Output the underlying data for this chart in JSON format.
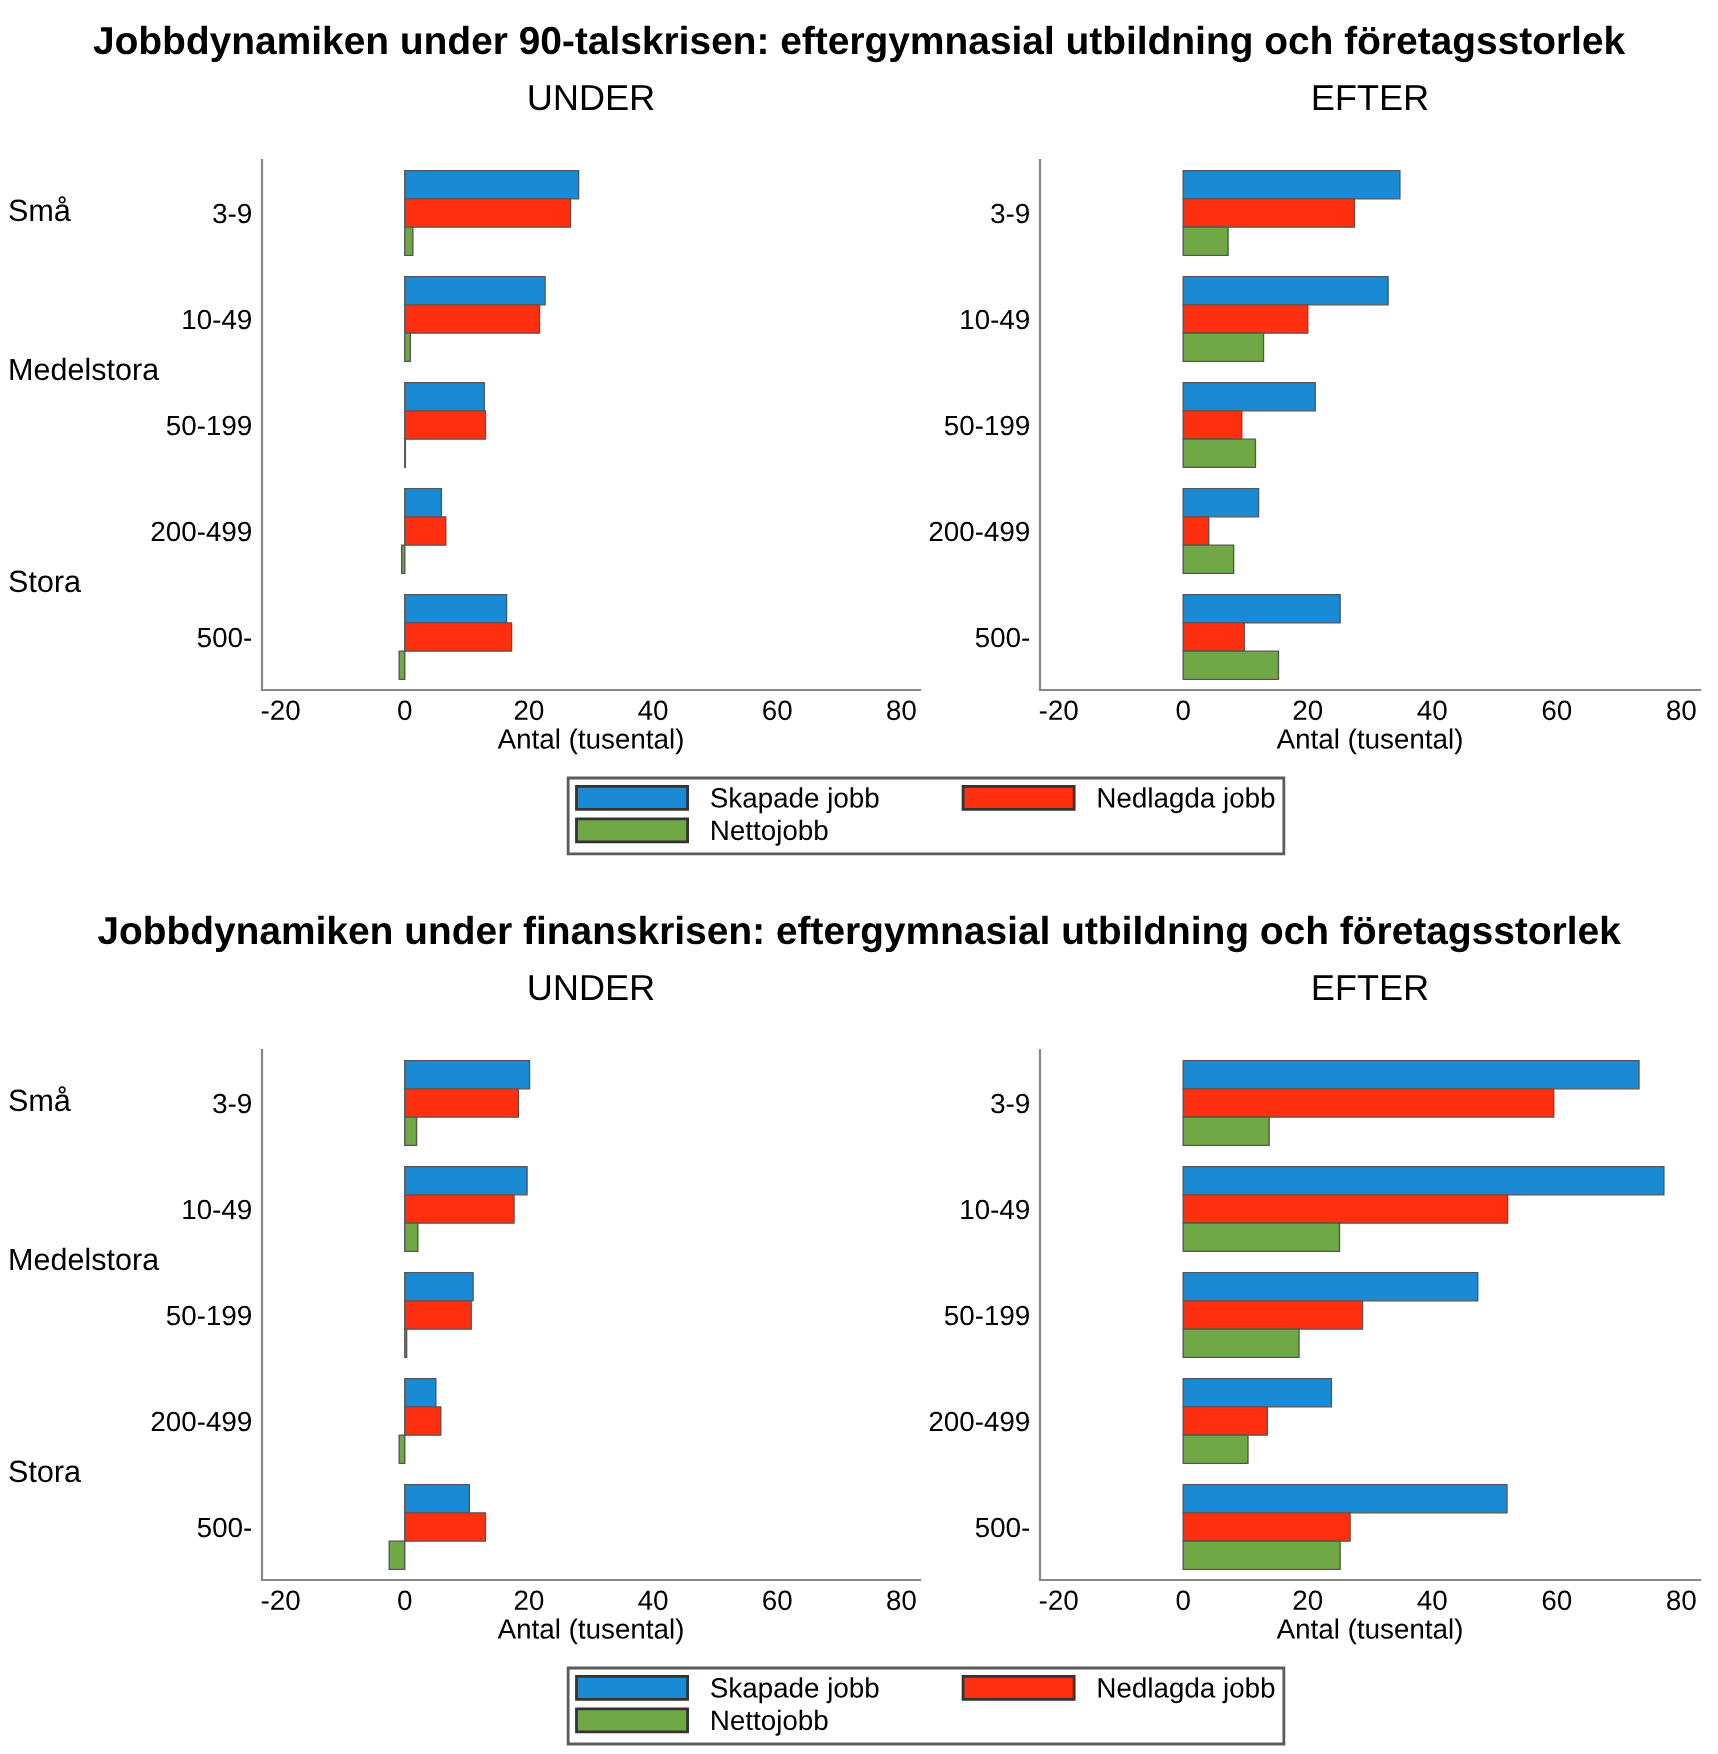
{
  "chart_data": [
    {
      "type": "bar",
      "orientation": "horizontal",
      "title": "Jobbdynamiken under 90-talskrisen: eftergymnasial utbildning och företagsstorlek",
      "subtitle": "UNDER",
      "xlabel": "Antal (tusental)",
      "categories": [
        "3-9",
        "10-49",
        "50-199",
        "200-499",
        "500-"
      ],
      "annotations": [
        "Små",
        "Medelstora",
        "Stora"
      ],
      "xlim": [
        -23,
        83
      ],
      "xticks": [
        -20,
        0,
        20,
        40,
        60,
        80
      ],
      "grid": false,
      "legend": "bottom",
      "series": [
        {
          "name": "Skapade jobb",
          "color": "#1a8ad4",
          "values": [
            28,
            22.6,
            12.8,
            5.9,
            16.4
          ]
        },
        {
          "name": "Nedlagda jobb",
          "color": "#ff3010",
          "values": [
            26.7,
            21.7,
            13,
            6.6,
            17.2
          ]
        },
        {
          "name": "Nettojobb",
          "color": "#70a845",
          "values": [
            1.3,
            0.9,
            0.1,
            -0.5,
            -0.9
          ]
        }
      ]
    },
    {
      "type": "bar",
      "orientation": "horizontal",
      "subtitle": "EFTER",
      "xlabel": "Antal (tusental)",
      "categories": [
        "3-9",
        "10-49",
        "50-199",
        "200-499",
        "500-"
      ],
      "xlim": [
        -23,
        83
      ],
      "xticks": [
        -20,
        0,
        20,
        40,
        60,
        80
      ],
      "grid": false,
      "series": [
        {
          "color": "#1a8ad4",
          "values": [
            34.8,
            32.9,
            21.2,
            12.1,
            25.2
          ]
        },
        {
          "color": "#ff3010",
          "values": [
            27.5,
            20,
            9.4,
            4.1,
            9.8
          ]
        },
        {
          "color": "#70a845",
          "values": [
            7.2,
            12.9,
            11.6,
            8.1,
            15.3
          ]
        }
      ]
    },
    {
      "type": "bar",
      "orientation": "horizontal",
      "title": "Jobbdynamiken under finanskrisen: eftergymnasial utbildning och företagsstorlek",
      "subtitle": "UNDER",
      "xlabel": "Antal (tusental)",
      "categories": [
        "3-9",
        "10-49",
        "50-199",
        "200-499",
        "500-"
      ],
      "annotations": [
        "Små",
        "Medelstora",
        "Stora"
      ],
      "xlim": [
        -23,
        83
      ],
      "xticks": [
        -20,
        0,
        20,
        40,
        60,
        80
      ],
      "grid": false,
      "legend": "bottom",
      "series": [
        {
          "name": "Skapade jobb",
          "color": "#1a8ad4",
          "values": [
            20.1,
            19.7,
            11,
            5,
            10.4
          ]
        },
        {
          "name": "Nedlagda jobb",
          "color": "#ff3010",
          "values": [
            18.3,
            17.6,
            10.7,
            5.8,
            13
          ]
        },
        {
          "name": "Nettojobb",
          "color": "#70a845",
          "values": [
            1.9,
            2.1,
            0.3,
            -0.9,
            -2.5
          ]
        }
      ]
    },
    {
      "type": "bar",
      "orientation": "horizontal",
      "subtitle": "EFTER",
      "xlabel": "Antal (tusental)",
      "categories": [
        "3-9",
        "10-49",
        "50-199",
        "200-499",
        "500-"
      ],
      "xlim": [
        -23,
        83
      ],
      "xticks": [
        -20,
        0,
        20,
        40,
        60,
        80
      ],
      "grid": false,
      "series": [
        {
          "color": "#1a8ad4",
          "values": [
            73.2,
            77.2,
            47.3,
            23.8,
            52
          ]
        },
        {
          "color": "#ff3010",
          "values": [
            59.5,
            52.1,
            28.8,
            13.5,
            26.8
          ]
        },
        {
          "color": "#70a845",
          "values": [
            13.8,
            25.1,
            18.6,
            10.4,
            25.2
          ]
        }
      ]
    }
  ]
}
